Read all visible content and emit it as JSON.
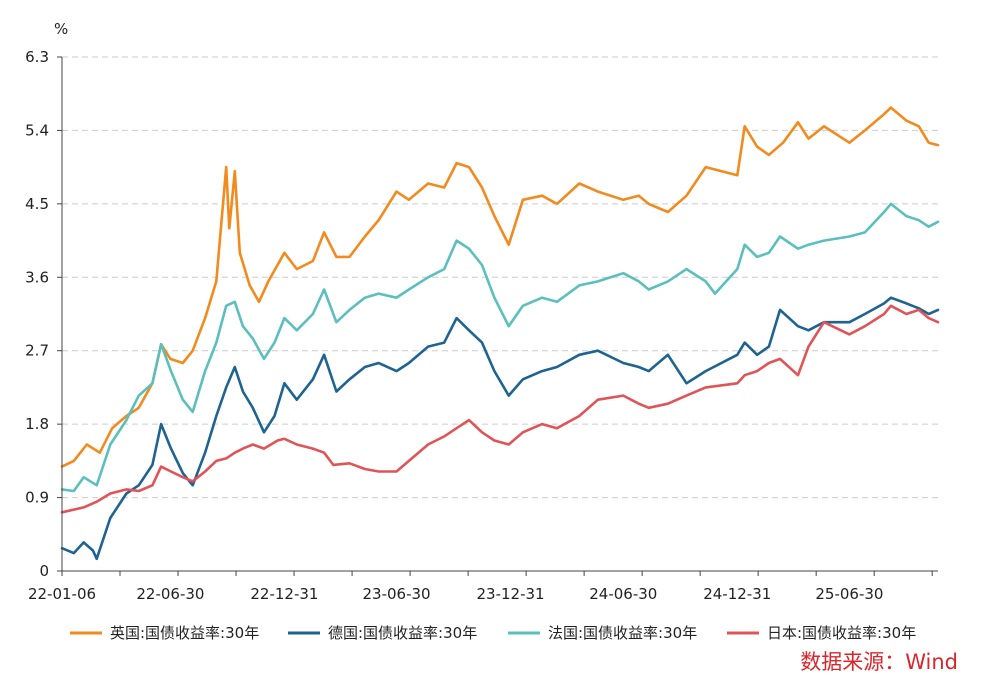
{
  "chart_data": {
    "type": "line",
    "unit": "%",
    "ylim": [
      0,
      6.3
    ],
    "y_ticks": [
      "0",
      "0.9",
      "1.8",
      "2.7",
      "3.6",
      "4.5",
      "5.4",
      "6.3"
    ],
    "x_ticks": [
      "22-01-06",
      "22-06-30",
      "22-12-31",
      "23-06-30",
      "23-12-31",
      "24-06-30",
      "24-12-31",
      "25-06-30"
    ],
    "x_tick_dates": [
      "2022-01-06",
      "2022-06-30",
      "2022-12-31",
      "2023-06-30",
      "2023-12-31",
      "2024-06-30",
      "2024-12-31",
      "2025-06-30"
    ],
    "grid": true,
    "legend_position": "bottom",
    "source": "数据来源：Wind",
    "series": [
      {
        "name": "英国:国债收益率:30年",
        "color": "#f28a1e",
        "points": [
          [
            "2022-01-06",
            1.28
          ],
          [
            "2022-01-25",
            1.35
          ],
          [
            "2022-02-15",
            1.55
          ],
          [
            "2022-03-08",
            1.45
          ],
          [
            "2022-03-28",
            1.75
          ],
          [
            "2022-04-20",
            1.9
          ],
          [
            "2022-05-10",
            2.0
          ],
          [
            "2022-06-01",
            2.3
          ],
          [
            "2022-06-15",
            2.78
          ],
          [
            "2022-06-30",
            2.6
          ],
          [
            "2022-07-20",
            2.55
          ],
          [
            "2022-08-05",
            2.7
          ],
          [
            "2022-08-25",
            3.1
          ],
          [
            "2022-09-12",
            3.55
          ],
          [
            "2022-09-28",
            4.95
          ],
          [
            "2022-10-03",
            4.2
          ],
          [
            "2022-10-12",
            4.9
          ],
          [
            "2022-10-20",
            3.9
          ],
          [
            "2022-11-05",
            3.5
          ],
          [
            "2022-11-20",
            3.3
          ],
          [
            "2022-12-05",
            3.55
          ],
          [
            "2022-12-31",
            3.9
          ],
          [
            "2023-01-20",
            3.7
          ],
          [
            "2023-02-15",
            3.8
          ],
          [
            "2023-03-05",
            4.15
          ],
          [
            "2023-03-25",
            3.85
          ],
          [
            "2023-04-15",
            3.85
          ],
          [
            "2023-05-10",
            4.1
          ],
          [
            "2023-06-01",
            4.3
          ],
          [
            "2023-06-30",
            4.65
          ],
          [
            "2023-07-20",
            4.55
          ],
          [
            "2023-08-20",
            4.75
          ],
          [
            "2023-09-15",
            4.7
          ],
          [
            "2023-10-05",
            5.0
          ],
          [
            "2023-10-25",
            4.95
          ],
          [
            "2023-11-15",
            4.7
          ],
          [
            "2023-12-05",
            4.35
          ],
          [
            "2023-12-28",
            4.0
          ],
          [
            "2024-01-20",
            4.55
          ],
          [
            "2024-02-20",
            4.6
          ],
          [
            "2024-03-15",
            4.5
          ],
          [
            "2024-04-20",
            4.75
          ],
          [
            "2024-05-20",
            4.65
          ],
          [
            "2024-06-30",
            4.55
          ],
          [
            "2024-07-25",
            4.6
          ],
          [
            "2024-08-10",
            4.5
          ],
          [
            "2024-09-10",
            4.4
          ],
          [
            "2024-10-10",
            4.6
          ],
          [
            "2024-11-10",
            4.95
          ],
          [
            "2024-12-31",
            4.85
          ],
          [
            "2025-01-12",
            5.45
          ],
          [
            "2025-02-01",
            5.2
          ],
          [
            "2025-02-20",
            5.1
          ],
          [
            "2025-03-15",
            5.25
          ],
          [
            "2025-04-08",
            5.5
          ],
          [
            "2025-04-25",
            5.3
          ],
          [
            "2025-05-20",
            5.45
          ],
          [
            "2025-06-30",
            5.25
          ],
          [
            "2025-07-25",
            5.4
          ],
          [
            "2025-08-25",
            5.6
          ],
          [
            "2025-09-05",
            5.68
          ],
          [
            "2025-09-30",
            5.52
          ],
          [
            "2025-10-20",
            5.45
          ],
          [
            "2025-11-05",
            5.25
          ],
          [
            "2025-11-20",
            5.22
          ]
        ]
      },
      {
        "name": "德国:国债收益率:30年",
        "color": "#1f6391",
        "points": [
          [
            "2022-01-06",
            0.28
          ],
          [
            "2022-01-25",
            0.22
          ],
          [
            "2022-02-10",
            0.35
          ],
          [
            "2022-02-25",
            0.25
          ],
          [
            "2022-03-03",
            0.15
          ],
          [
            "2022-03-25",
            0.65
          ],
          [
            "2022-04-20",
            0.95
          ],
          [
            "2022-05-10",
            1.05
          ],
          [
            "2022-06-01",
            1.3
          ],
          [
            "2022-06-15",
            1.8
          ],
          [
            "2022-07-01",
            1.5
          ],
          [
            "2022-07-20",
            1.2
          ],
          [
            "2022-08-05",
            1.05
          ],
          [
            "2022-08-25",
            1.45
          ],
          [
            "2022-09-12",
            1.9
          ],
          [
            "2022-09-28",
            2.25
          ],
          [
            "2022-10-12",
            2.5
          ],
          [
            "2022-10-25",
            2.2
          ],
          [
            "2022-11-10",
            2.0
          ],
          [
            "2022-11-28",
            1.7
          ],
          [
            "2022-12-15",
            1.9
          ],
          [
            "2022-12-31",
            2.3
          ],
          [
            "2023-01-20",
            2.1
          ],
          [
            "2023-02-15",
            2.35
          ],
          [
            "2023-03-05",
            2.65
          ],
          [
            "2023-03-25",
            2.2
          ],
          [
            "2023-04-15",
            2.35
          ],
          [
            "2023-05-10",
            2.5
          ],
          [
            "2023-06-01",
            2.55
          ],
          [
            "2023-06-30",
            2.45
          ],
          [
            "2023-07-20",
            2.55
          ],
          [
            "2023-08-20",
            2.75
          ],
          [
            "2023-09-15",
            2.8
          ],
          [
            "2023-10-05",
            3.1
          ],
          [
            "2023-10-25",
            2.95
          ],
          [
            "2023-11-15",
            2.8
          ],
          [
            "2023-12-05",
            2.45
          ],
          [
            "2023-12-28",
            2.15
          ],
          [
            "2024-01-20",
            2.35
          ],
          [
            "2024-02-20",
            2.45
          ],
          [
            "2024-03-15",
            2.5
          ],
          [
            "2024-04-20",
            2.65
          ],
          [
            "2024-05-20",
            2.7
          ],
          [
            "2024-06-30",
            2.55
          ],
          [
            "2024-07-25",
            2.5
          ],
          [
            "2024-08-10",
            2.45
          ],
          [
            "2024-09-10",
            2.65
          ],
          [
            "2024-10-10",
            2.3
          ],
          [
            "2024-11-10",
            2.45
          ],
          [
            "2024-12-31",
            2.65
          ],
          [
            "2025-01-12",
            2.8
          ],
          [
            "2025-02-01",
            2.65
          ],
          [
            "2025-02-20",
            2.75
          ],
          [
            "2025-03-10",
            3.2
          ],
          [
            "2025-04-08",
            3.0
          ],
          [
            "2025-04-25",
            2.95
          ],
          [
            "2025-05-20",
            3.05
          ],
          [
            "2025-06-30",
            3.05
          ],
          [
            "2025-07-25",
            3.15
          ],
          [
            "2025-08-25",
            3.28
          ],
          [
            "2025-09-05",
            3.35
          ],
          [
            "2025-09-30",
            3.28
          ],
          [
            "2025-10-20",
            3.22
          ],
          [
            "2025-11-05",
            3.15
          ],
          [
            "2025-11-20",
            3.2
          ]
        ]
      },
      {
        "name": "法国:国债收益率:30年",
        "color": "#5bbfbd",
        "points": [
          [
            "2022-01-06",
            1.0
          ],
          [
            "2022-01-25",
            0.98
          ],
          [
            "2022-02-10",
            1.15
          ],
          [
            "2022-03-03",
            1.05
          ],
          [
            "2022-03-25",
            1.55
          ],
          [
            "2022-04-20",
            1.85
          ],
          [
            "2022-05-10",
            2.15
          ],
          [
            "2022-06-01",
            2.3
          ],
          [
            "2022-06-15",
            2.78
          ],
          [
            "2022-07-01",
            2.45
          ],
          [
            "2022-07-20",
            2.1
          ],
          [
            "2022-08-05",
            1.95
          ],
          [
            "2022-08-25",
            2.45
          ],
          [
            "2022-09-12",
            2.8
          ],
          [
            "2022-09-28",
            3.25
          ],
          [
            "2022-10-12",
            3.3
          ],
          [
            "2022-10-25",
            3.0
          ],
          [
            "2022-11-10",
            2.85
          ],
          [
            "2022-11-28",
            2.6
          ],
          [
            "2022-12-15",
            2.8
          ],
          [
            "2022-12-31",
            3.1
          ],
          [
            "2023-01-20",
            2.95
          ],
          [
            "2023-02-15",
            3.15
          ],
          [
            "2023-03-05",
            3.45
          ],
          [
            "2023-03-25",
            3.05
          ],
          [
            "2023-04-15",
            3.2
          ],
          [
            "2023-05-10",
            3.35
          ],
          [
            "2023-06-01",
            3.4
          ],
          [
            "2023-06-30",
            3.35
          ],
          [
            "2023-07-20",
            3.45
          ],
          [
            "2023-08-20",
            3.6
          ],
          [
            "2023-09-15",
            3.7
          ],
          [
            "2023-10-05",
            4.05
          ],
          [
            "2023-10-25",
            3.95
          ],
          [
            "2023-11-15",
            3.75
          ],
          [
            "2023-12-05",
            3.35
          ],
          [
            "2023-12-28",
            3.0
          ],
          [
            "2024-01-20",
            3.25
          ],
          [
            "2024-02-20",
            3.35
          ],
          [
            "2024-03-15",
            3.3
          ],
          [
            "2024-04-20",
            3.5
          ],
          [
            "2024-05-20",
            3.55
          ],
          [
            "2024-06-30",
            3.65
          ],
          [
            "2024-07-25",
            3.55
          ],
          [
            "2024-08-10",
            3.45
          ],
          [
            "2024-09-10",
            3.55
          ],
          [
            "2024-10-10",
            3.7
          ],
          [
            "2024-11-10",
            3.55
          ],
          [
            "2024-11-25",
            3.4
          ],
          [
            "2024-12-31",
            3.7
          ],
          [
            "2025-01-12",
            4.0
          ],
          [
            "2025-02-01",
            3.85
          ],
          [
            "2025-02-20",
            3.9
          ],
          [
            "2025-03-10",
            4.1
          ],
          [
            "2025-04-08",
            3.95
          ],
          [
            "2025-04-25",
            4.0
          ],
          [
            "2025-05-20",
            4.05
          ],
          [
            "2025-06-30",
            4.1
          ],
          [
            "2025-07-25",
            4.15
          ],
          [
            "2025-08-25",
            4.4
          ],
          [
            "2025-09-05",
            4.5
          ],
          [
            "2025-09-30",
            4.35
          ],
          [
            "2025-10-20",
            4.3
          ],
          [
            "2025-11-05",
            4.22
          ],
          [
            "2025-11-20",
            4.28
          ]
        ]
      },
      {
        "name": "日本:国债收益率:30年",
        "color": "#e05458",
        "points": [
          [
            "2022-01-06",
            0.72
          ],
          [
            "2022-02-10",
            0.78
          ],
          [
            "2022-03-03",
            0.85
          ],
          [
            "2022-03-25",
            0.95
          ],
          [
            "2022-04-20",
            1.0
          ],
          [
            "2022-05-10",
            0.98
          ],
          [
            "2022-06-01",
            1.05
          ],
          [
            "2022-06-15",
            1.28
          ],
          [
            "2022-07-01",
            1.22
          ],
          [
            "2022-07-20",
            1.15
          ],
          [
            "2022-08-05",
            1.1
          ],
          [
            "2022-08-25",
            1.22
          ],
          [
            "2022-09-12",
            1.35
          ],
          [
            "2022-09-28",
            1.38
          ],
          [
            "2022-10-12",
            1.45
          ],
          [
            "2022-10-25",
            1.5
          ],
          [
            "2022-11-10",
            1.55
          ],
          [
            "2022-11-28",
            1.5
          ],
          [
            "2022-12-20",
            1.6
          ],
          [
            "2022-12-31",
            1.62
          ],
          [
            "2023-01-20",
            1.55
          ],
          [
            "2023-02-15",
            1.5
          ],
          [
            "2023-03-05",
            1.45
          ],
          [
            "2023-03-20",
            1.3
          ],
          [
            "2023-04-15",
            1.32
          ],
          [
            "2023-05-10",
            1.25
          ],
          [
            "2023-06-01",
            1.22
          ],
          [
            "2023-06-30",
            1.22
          ],
          [
            "2023-07-20",
            1.35
          ],
          [
            "2023-08-20",
            1.55
          ],
          [
            "2023-09-15",
            1.65
          ],
          [
            "2023-10-05",
            1.75
          ],
          [
            "2023-10-25",
            1.85
          ],
          [
            "2023-11-15",
            1.7
          ],
          [
            "2023-12-05",
            1.6
          ],
          [
            "2023-12-28",
            1.55
          ],
          [
            "2024-01-20",
            1.7
          ],
          [
            "2024-02-20",
            1.8
          ],
          [
            "2024-03-15",
            1.75
          ],
          [
            "2024-04-20",
            1.9
          ],
          [
            "2024-05-20",
            2.1
          ],
          [
            "2024-06-30",
            2.15
          ],
          [
            "2024-07-25",
            2.05
          ],
          [
            "2024-08-10",
            2.0
          ],
          [
            "2024-09-10",
            2.05
          ],
          [
            "2024-10-10",
            2.15
          ],
          [
            "2024-11-10",
            2.25
          ],
          [
            "2024-12-31",
            2.3
          ],
          [
            "2025-01-12",
            2.4
          ],
          [
            "2025-02-01",
            2.45
          ],
          [
            "2025-02-20",
            2.55
          ],
          [
            "2025-03-10",
            2.6
          ],
          [
            "2025-04-08",
            2.4
          ],
          [
            "2025-04-25",
            2.75
          ],
          [
            "2025-05-20",
            3.05
          ],
          [
            "2025-06-30",
            2.9
          ],
          [
            "2025-07-25",
            3.0
          ],
          [
            "2025-08-25",
            3.15
          ],
          [
            "2025-09-05",
            3.25
          ],
          [
            "2025-09-30",
            3.15
          ],
          [
            "2025-10-20",
            3.2
          ],
          [
            "2025-11-05",
            3.1
          ],
          [
            "2025-11-20",
            3.05
          ]
        ]
      }
    ]
  }
}
